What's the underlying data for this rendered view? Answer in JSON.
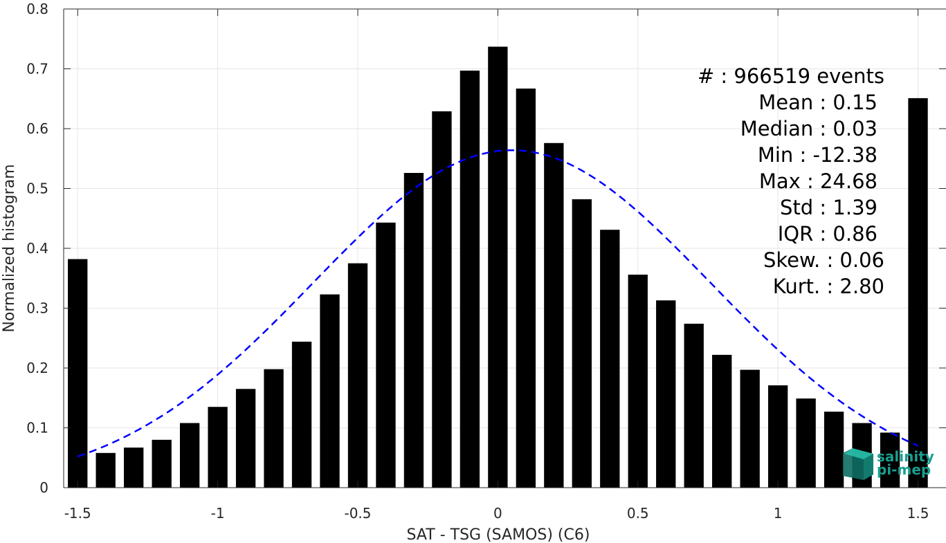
{
  "chart_data": {
    "type": "bar",
    "xlabel": "SAT - TSG (SAMOS) (C6)",
    "ylabel": "Normalized histogram",
    "xlim": [
      -1.55,
      1.6
    ],
    "ylim": [
      0,
      0.8
    ],
    "x_ticks": [
      -1.5,
      -1,
      -0.5,
      0,
      0.5,
      1,
      1.5
    ],
    "x_tick_labels": [
      "-1.5",
      "-1",
      "-0.5",
      "0",
      "0.5",
      "1",
      "1.5"
    ],
    "y_ticks": [
      0,
      0.1,
      0.2,
      0.3,
      0.4,
      0.5,
      0.6,
      0.7,
      0.8
    ],
    "y_tick_labels": [
      "0",
      "0.1",
      "0.2",
      "0.3",
      "0.4",
      "0.5",
      "0.6",
      "0.7",
      "0.8"
    ],
    "grid": true,
    "bar_color": "#000000",
    "x": [
      -1.5,
      -1.4,
      -1.3,
      -1.2,
      -1.1,
      -1.0,
      -0.9,
      -0.8,
      -0.7,
      -0.6,
      -0.5,
      -0.4,
      -0.3,
      -0.2,
      -0.1,
      0.0,
      0.1,
      0.2,
      0.3,
      0.4,
      0.5,
      0.6,
      0.7,
      0.8,
      0.9,
      1.0,
      1.1,
      1.2,
      1.3,
      1.4,
      1.5
    ],
    "values": [
      0.382,
      0.058,
      0.067,
      0.08,
      0.108,
      0.135,
      0.165,
      0.198,
      0.244,
      0.323,
      0.375,
      0.443,
      0.526,
      0.629,
      0.697,
      0.737,
      0.667,
      0.576,
      0.482,
      0.431,
      0.356,
      0.313,
      0.274,
      0.222,
      0.197,
      0.171,
      0.149,
      0.127,
      0.108,
      0.092,
      0.651
    ],
    "fit_curve": {
      "style": "dashed",
      "color": "#0000ff",
      "mean": 0.05,
      "sigma": 0.71,
      "peak": 0.564,
      "x_range": [
        -1.5,
        1.5
      ]
    }
  },
  "stats": [
    {
      "label": "#  : 966519 events"
    },
    {
      "label": "Mean : 0.15"
    },
    {
      "label": "Median : 0.03"
    },
    {
      "label": "Min : -12.38"
    },
    {
      "label": "Max : 24.68"
    },
    {
      "label": "Std : 1.39"
    },
    {
      "label": "IQR : 0.86"
    },
    {
      "label": "Skew. : 0.06"
    },
    {
      "label": "Kurt. : 2.80"
    }
  ],
  "logo": {
    "line1": "salinity",
    "line2": "pi-mep",
    "color": "#1a9e8f"
  }
}
